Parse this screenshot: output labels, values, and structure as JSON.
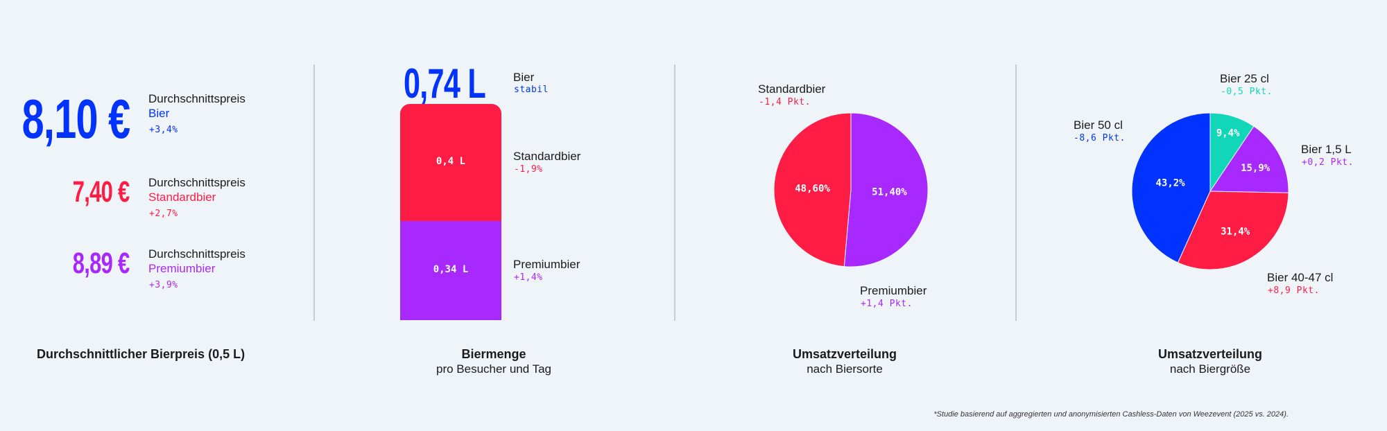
{
  "colors": {
    "blue": "#0033ff",
    "red": "#ff1d45",
    "purple": "#a729ff",
    "teal": "#12d6b8",
    "background": "#eff4f9"
  },
  "price": {
    "title": "Durchschnittlicher Bierpreis (0,5 L)",
    "items": [
      {
        "value": "8,10 €",
        "label": "Durchschnittspreis",
        "type": "Bier",
        "change": "+3,4%"
      },
      {
        "value": "7,40 €",
        "label": "Durchschnittspreis",
        "type": "Standardbier",
        "change": "+2,7%"
      },
      {
        "value": "8,89 €",
        "label": "Durchschnittspreis",
        "type": "Premiumbier",
        "change": "+3,9%"
      }
    ]
  },
  "volume": {
    "total": "0,74 L",
    "total_label": "Bier",
    "total_change": "stabil",
    "title": "Biermenge",
    "subtitle": "pro Besucher und Tag"
  },
  "chart_data": [
    {
      "type": "bar",
      "stacked": true,
      "categories": [
        "Standardbier",
        "Premiumbier"
      ],
      "values": [
        0.4,
        0.34
      ],
      "value_labels": [
        "0,4 L",
        "0,34 L"
      ],
      "changes": [
        "-1,9%",
        "+1,4%"
      ],
      "colors": [
        "#ff1d45",
        "#a729ff"
      ]
    },
    {
      "type": "pie",
      "title": "Umsatzverteilung",
      "subtitle": "nach Biersorte",
      "slices": [
        {
          "name": "Premiumbier",
          "value": 51.4,
          "label": "51,40%",
          "change": "+1,4 Pkt.",
          "color": "#a729ff"
        },
        {
          "name": "Standardbier",
          "value": 48.6,
          "label": "48,60%",
          "change": "-1,4 Pkt.",
          "color": "#ff1d45"
        }
      ]
    },
    {
      "type": "pie",
      "title": "Umsatzverteilung",
      "subtitle": "nach Biergröße",
      "slices": [
        {
          "name": "Bier 25 cl",
          "value": 9.4,
          "label": "9,4%",
          "change": "-0,5 Pkt.",
          "color": "#12d6b8"
        },
        {
          "name": "Bier 1,5 L",
          "value": 15.9,
          "label": "15,9%",
          "change": "+0,2 Pkt.",
          "color": "#a729ff"
        },
        {
          "name": "Bier 40-47 cl",
          "value": 31.4,
          "label": "31,4%",
          "change": "+8,9 Pkt.",
          "color": "#ff1d45"
        },
        {
          "name": "Bier 50 cl",
          "value": 43.2,
          "label": "43,2%",
          "change": "-8,6 Pkt.",
          "color": "#0033ff"
        }
      ]
    }
  ],
  "footnote": "*Studie basierend auf aggregierten und anonymisierten Cashless-Daten von Weezevent (2025 vs. 2024)."
}
